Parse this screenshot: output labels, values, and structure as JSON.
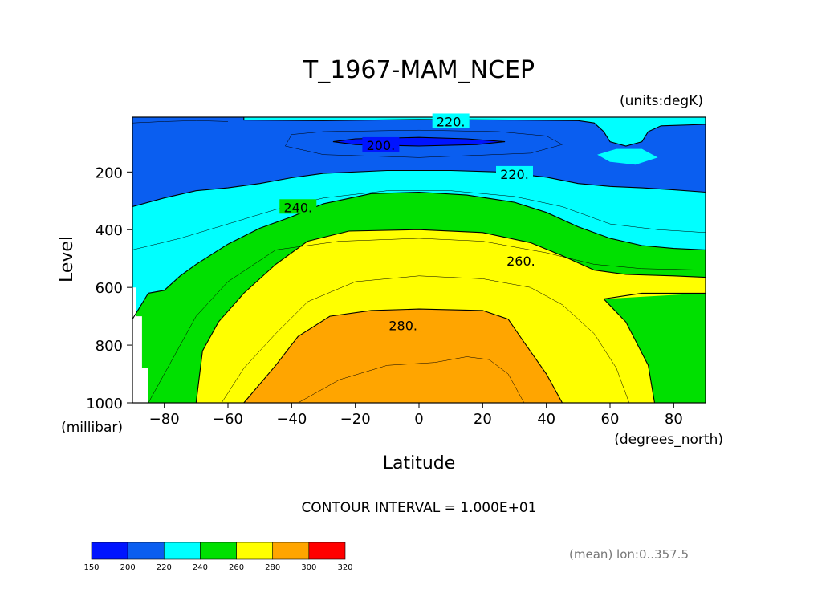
{
  "chart_data": {
    "type": "filled-contour",
    "title": "T_1967-MAM_NCEP",
    "units_label": "(units:degK)",
    "xlabel": "Latitude",
    "x_units_label": "(degrees_north)",
    "ylabel": "Level",
    "y_units_label": "(millibar)",
    "xlim": [
      -90,
      90
    ],
    "ylim": [
      1000,
      10
    ],
    "y_inverted": true,
    "x_ticks": [
      "−80",
      "−60",
      "−40",
      "−20",
      "0",
      "20",
      "40",
      "60",
      "80"
    ],
    "x_tick_values": [
      -80,
      -60,
      -40,
      -20,
      0,
      20,
      40,
      60,
      80
    ],
    "y_ticks": [
      "200",
      "400",
      "600",
      "800",
      "1000"
    ],
    "y_tick_values": [
      200,
      400,
      600,
      800,
      1000
    ],
    "contour_interval_text": "CONTOUR INTERVAL = 1.000E+01",
    "footnote": "(mean) lon:0..357.5",
    "contour_labels": [
      {
        "text": "220.",
        "lat": 10,
        "lev": 28
      },
      {
        "text": "200.",
        "lat": -12,
        "lev": 110
      },
      {
        "text": "220.",
        "lat": 30,
        "lev": 210
      },
      {
        "text": "240.",
        "lat": -38,
        "lev": 325
      },
      {
        "text": "260.",
        "lat": 32,
        "lev": 510
      },
      {
        "text": "280.",
        "lat": -5,
        "lev": 735
      }
    ],
    "colorbar": {
      "levels": [
        150,
        200,
        220,
        240,
        260,
        280,
        300,
        320
      ],
      "level_labels": [
        "150",
        "200",
        "220",
        "240",
        "260",
        "280",
        "300",
        "320"
      ],
      "colors": [
        "#0014ff",
        "#0a5ef0",
        "#00ffff",
        "#00e000",
        "#ffff00",
        "#ffa500",
        "#ff0000"
      ]
    },
    "isotherms": [
      {
        "value": 200,
        "points": [
          [
            -27,
            95
          ],
          [
            -20,
            85
          ],
          [
            0,
            80
          ],
          [
            15,
            85
          ],
          [
            27,
            95
          ],
          [
            18,
            105
          ],
          [
            0,
            110
          ],
          [
            -20,
            105
          ],
          [
            -27,
            95
          ]
        ]
      },
      {
        "value": 220,
        "points": [
          [
            -90,
            320
          ],
          [
            -80,
            290
          ],
          [
            -70,
            265
          ],
          [
            -60,
            255
          ],
          [
            -50,
            240
          ],
          [
            -40,
            220
          ],
          [
            -30,
            205
          ],
          [
            -10,
            195
          ],
          [
            10,
            195
          ],
          [
            25,
            200
          ],
          [
            40,
            218
          ],
          [
            50,
            240
          ],
          [
            60,
            250
          ],
          [
            70,
            255
          ],
          [
            80,
            262
          ],
          [
            90,
            270
          ]
        ]
      },
      {
        "value": 240,
        "points": [
          [
            -90,
            710
          ],
          [
            -85,
            620
          ],
          [
            -80,
            610
          ],
          [
            -75,
            560
          ],
          [
            -70,
            520
          ],
          [
            -60,
            450
          ],
          [
            -50,
            395
          ],
          [
            -40,
            355
          ],
          [
            -30,
            310
          ],
          [
            -15,
            275
          ],
          [
            0,
            270
          ],
          [
            15,
            280
          ],
          [
            30,
            305
          ],
          [
            40,
            340
          ],
          [
            50,
            390
          ],
          [
            60,
            430
          ],
          [
            70,
            455
          ],
          [
            80,
            465
          ],
          [
            90,
            470
          ]
        ]
      },
      {
        "value": 260,
        "points": [
          [
            -70,
            1000
          ],
          [
            -68,
            820
          ],
          [
            -63,
            720
          ],
          [
            -55,
            620
          ],
          [
            -45,
            520
          ],
          [
            -35,
            440
          ],
          [
            -22,
            405
          ],
          [
            0,
            400
          ],
          [
            20,
            410
          ],
          [
            35,
            445
          ],
          [
            45,
            490
          ],
          [
            55,
            540
          ],
          [
            65,
            555
          ],
          [
            80,
            560
          ],
          [
            90,
            565
          ]
        ]
      },
      {
        "value": 280,
        "points": [
          [
            -55,
            1000
          ],
          [
            -45,
            870
          ],
          [
            -38,
            770
          ],
          [
            -28,
            700
          ],
          [
            -15,
            680
          ],
          [
            0,
            675
          ],
          [
            20,
            680
          ],
          [
            28,
            710
          ],
          [
            33,
            790
          ],
          [
            40,
            900
          ],
          [
            45,
            1000
          ]
        ]
      }
    ]
  }
}
